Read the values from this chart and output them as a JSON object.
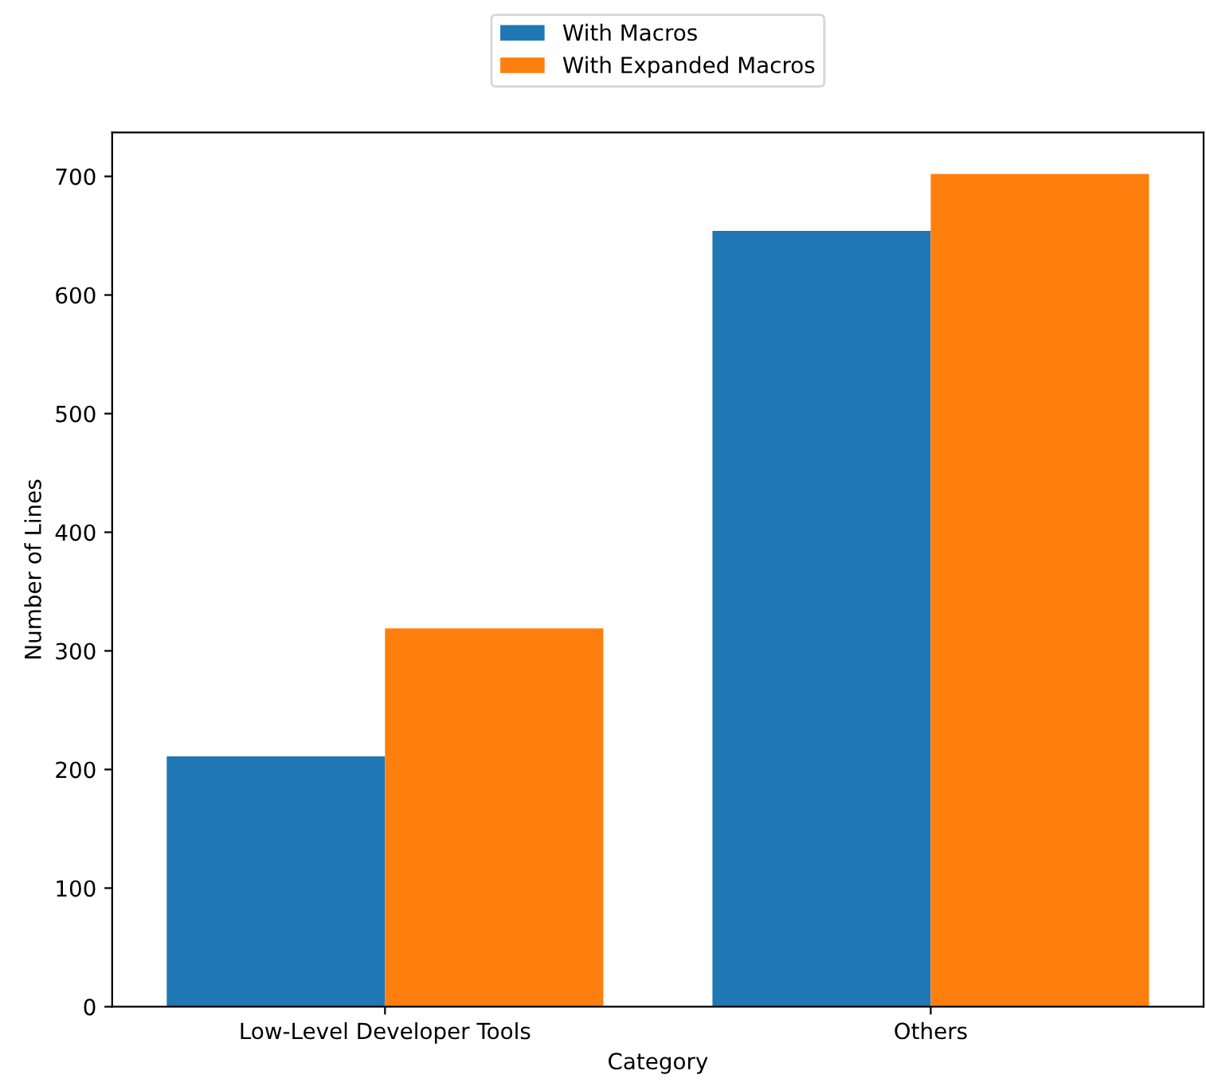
{
  "chart_data": {
    "type": "bar",
    "xlabel": "Category",
    "ylabel": "Number of Lines",
    "categories": [
      "Low-Level Developer Tools",
      "Others"
    ],
    "series": [
      {
        "name": "With Macros",
        "color": "#1f77b4",
        "values": [
          211,
          654
        ]
      },
      {
        "name": "With Expanded Macros",
        "color": "#ff7f0e",
        "values": [
          319,
          702
        ]
      }
    ],
    "ylim": [
      0,
      737
    ],
    "yticks": [
      0,
      100,
      200,
      300,
      400,
      500,
      600,
      700
    ],
    "grid": false,
    "legend": "top"
  }
}
